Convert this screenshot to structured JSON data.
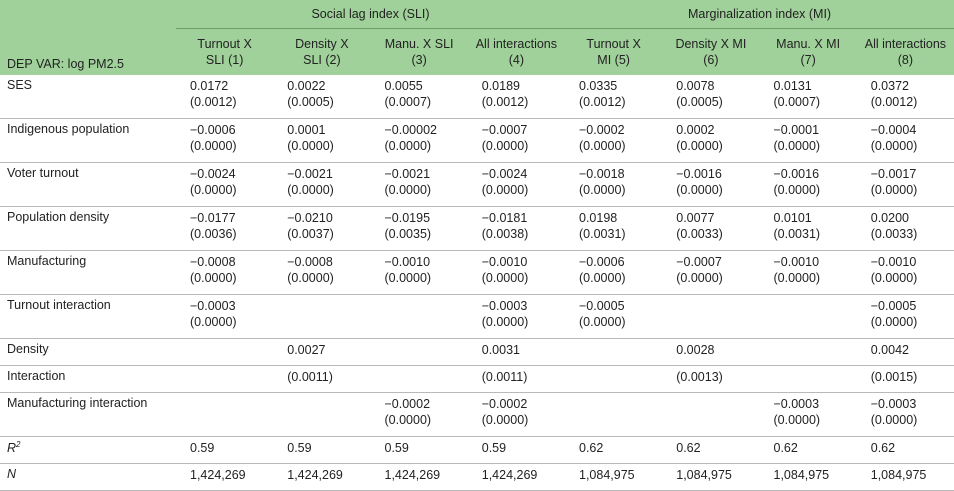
{
  "header": {
    "dep_var": "DEP VAR: log PM2.5",
    "group_sli": "Social lag index (SLI)",
    "group_mi": "Marginalization index (MI)",
    "columns": [
      [
        "Turnout X",
        "SLI (1)"
      ],
      [
        "Density X",
        "SLI (2)"
      ],
      [
        "Manu. X SLI",
        "(3)"
      ],
      [
        "All interactions",
        "(4)"
      ],
      [
        "Turnout X",
        "MI (5)"
      ],
      [
        "Density X MI",
        "(6)"
      ],
      [
        "Manu. X MI",
        "(7)"
      ],
      [
        "All interactions",
        "(8)"
      ]
    ]
  },
  "rows": [
    {
      "label": "SES",
      "cells": [
        [
          "0.0172",
          "(0.0012)"
        ],
        [
          "0.0022",
          "(0.0005)"
        ],
        [
          "0.0055",
          "(0.0007)"
        ],
        [
          "0.0189",
          "(0.0012)"
        ],
        [
          "0.0335",
          "(0.0012)"
        ],
        [
          "0.0078",
          "(0.0005)"
        ],
        [
          "0.0131",
          "(0.0007)"
        ],
        [
          "0.0372",
          "(0.0012)"
        ]
      ]
    },
    {
      "label": "Indigenous population",
      "cells": [
        [
          "−0.0006",
          "(0.0000)"
        ],
        [
          "0.0001",
          "(0.0000)"
        ],
        [
          "−0.00002",
          "(0.0000)"
        ],
        [
          "−0.0007",
          "(0.0000)"
        ],
        [
          "−0.0002",
          "(0.0000)"
        ],
        [
          "0.0002",
          "(0.0000)"
        ],
        [
          "−0.0001",
          "(0.0000)"
        ],
        [
          "−0.0004",
          "(0.0000)"
        ]
      ]
    },
    {
      "label": "Voter turnout",
      "cells": [
        [
          "−0.0024",
          "(0.0000)"
        ],
        [
          "−0.0021",
          "(0.0000)"
        ],
        [
          "−0.0021",
          "(0.0000)"
        ],
        [
          "−0.0024",
          "(0.0000)"
        ],
        [
          "−0.0018",
          "(0.0000)"
        ],
        [
          "−0.0016",
          "(0.0000)"
        ],
        [
          "−0.0016",
          "(0.0000)"
        ],
        [
          "−0.0017",
          "(0.0000)"
        ]
      ]
    },
    {
      "label": "Population density",
      "cells": [
        [
          "−0.0177",
          "(0.0036)"
        ],
        [
          "−0.0210",
          "(0.0037)"
        ],
        [
          "−0.0195",
          "(0.0035)"
        ],
        [
          "−0.0181",
          "(0.0038)"
        ],
        [
          "0.0198",
          "(0.0031)"
        ],
        [
          "0.0077",
          "(0.0033)"
        ],
        [
          "0.0101",
          "(0.0031)"
        ],
        [
          "0.0200",
          "(0.0033)"
        ]
      ]
    },
    {
      "label": "Manufacturing",
      "cells": [
        [
          "−0.0008",
          "(0.0000)"
        ],
        [
          "−0.0008",
          "(0.0000)"
        ],
        [
          "−0.0010",
          "(0.0000)"
        ],
        [
          "−0.0010",
          "(0.0000)"
        ],
        [
          "−0.0006",
          "(0.0000)"
        ],
        [
          "−0.0007",
          "(0.0000)"
        ],
        [
          "−0.0010",
          "(0.0000)"
        ],
        [
          "−0.0010",
          "(0.0000)"
        ]
      ]
    },
    {
      "label": "Turnout interaction",
      "cells": [
        [
          "−0.0003",
          "(0.0000)"
        ],
        [
          "",
          ""
        ],
        [
          "",
          ""
        ],
        [
          "−0.0003",
          "(0.0000)"
        ],
        [
          "−0.0005",
          "(0.0000)"
        ],
        [
          "",
          ""
        ],
        [
          "",
          ""
        ],
        [
          "−0.0005",
          "(0.0000)"
        ]
      ]
    },
    {
      "label": "Density",
      "single": true,
      "cells": [
        [
          ""
        ],
        [
          "0.0027"
        ],
        [
          ""
        ],
        [
          "0.0031"
        ],
        [
          ""
        ],
        [
          "0.0028"
        ],
        [
          ""
        ],
        [
          "0.0042"
        ]
      ]
    },
    {
      "label": "Interaction",
      "single": true,
      "cells": [
        [
          ""
        ],
        [
          "(0.0011)"
        ],
        [
          ""
        ],
        [
          "(0.0011)"
        ],
        [
          ""
        ],
        [
          "(0.0013)"
        ],
        [
          ""
        ],
        [
          "(0.0015)"
        ]
      ]
    },
    {
      "label": "Manufacturing interaction",
      "cells": [
        [
          "",
          ""
        ],
        [
          "",
          ""
        ],
        [
          "−0.0002",
          "(0.0000)"
        ],
        [
          "−0.0002",
          "(0.0000)"
        ],
        [
          "",
          ""
        ],
        [
          "",
          ""
        ],
        [
          "−0.0003",
          "(0.0000)"
        ],
        [
          "−0.0003",
          "(0.0000)"
        ]
      ]
    },
    {
      "label": "R",
      "sup": "2",
      "italic": true,
      "single": true,
      "cells": [
        [
          "0.59"
        ],
        [
          "0.59"
        ],
        [
          "0.59"
        ],
        [
          "0.59"
        ],
        [
          "0.62"
        ],
        [
          "0.62"
        ],
        [
          "0.62"
        ],
        [
          "0.62"
        ]
      ]
    },
    {
      "label": "N",
      "italic": true,
      "single": true,
      "cells": [
        [
          "1,424,269"
        ],
        [
          "1,424,269"
        ],
        [
          "1,424,269"
        ],
        [
          "1,424,269"
        ],
        [
          "1,084,975"
        ],
        [
          "1,084,975"
        ],
        [
          "1,084,975"
        ],
        [
          "1,084,975"
        ]
      ]
    }
  ]
}
